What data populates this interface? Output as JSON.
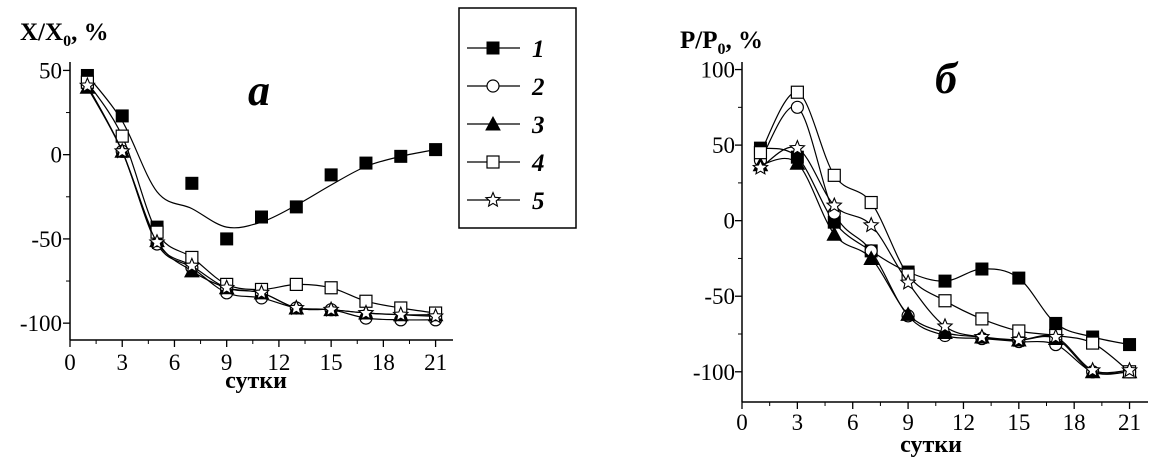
{
  "chart_data": [
    {
      "type": "line",
      "panel_label": "а",
      "ylabel": "X/X",
      "ylabel_sub": "0",
      "ylabel_suffix": ", %",
      "xlabel": "сутки",
      "xlim": [
        0,
        22
      ],
      "ylim": [
        -110,
        55
      ],
      "xticks": [
        0,
        3,
        6,
        9,
        12,
        15,
        18,
        21
      ],
      "yticks": [
        50,
        0,
        -50,
        -100
      ],
      "series": [
        {
          "name": "1",
          "marker": "square-filled",
          "x": [
            1,
            3,
            5,
            7,
            9,
            11,
            13,
            15,
            17,
            19,
            21
          ],
          "y": [
            47,
            23,
            -43,
            -17,
            -50,
            -37,
            -31,
            -12,
            -5,
            -1,
            3
          ],
          "smooth": [
            47,
            20,
            -22,
            -32,
            -43,
            -40,
            -30,
            -18,
            -7,
            -1,
            3
          ]
        },
        {
          "name": "2",
          "marker": "circle-open",
          "x": [
            1,
            3,
            5,
            7,
            9,
            11,
            13,
            15,
            17,
            19,
            21
          ],
          "y": [
            41,
            2,
            -53,
            -67,
            -82,
            -85,
            -91,
            -92,
            -97,
            -98,
            -98
          ]
        },
        {
          "name": "3",
          "marker": "triangle-filled",
          "x": [
            1,
            3,
            5,
            7,
            9,
            11,
            13,
            15,
            17,
            19,
            21
          ],
          "y": [
            40,
            2,
            -51,
            -69,
            -79,
            -82,
            -91,
            -92,
            -94,
            -95,
            -95
          ]
        },
        {
          "name": "4",
          "marker": "square-open",
          "x": [
            1,
            3,
            5,
            7,
            9,
            11,
            13,
            15,
            17,
            19,
            21
          ],
          "y": [
            43,
            11,
            -46,
            -61,
            -77,
            -80,
            -77,
            -79,
            -87,
            -91,
            -94
          ]
        },
        {
          "name": "5",
          "marker": "star-open",
          "x": [
            1,
            3,
            5,
            7,
            9,
            11,
            13,
            15,
            17,
            19,
            21
          ],
          "y": [
            41,
            2,
            -52,
            -66,
            -79,
            -82,
            -91,
            -92,
            -94,
            -95,
            -96
          ]
        }
      ]
    },
    {
      "type": "line",
      "panel_label": "б",
      "ylabel": "P/P",
      "ylabel_sub": "0",
      "ylabel_suffix": ", %",
      "xlabel": "сутки",
      "xlim": [
        0,
        22
      ],
      "ylim": [
        -120,
        105
      ],
      "xticks": [
        0,
        3,
        6,
        9,
        12,
        15,
        18,
        21
      ],
      "yticks": [
        100,
        50,
        0,
        -50,
        -100
      ],
      "series": [
        {
          "name": "1",
          "marker": "square-filled",
          "x": [
            1,
            3,
            5,
            7,
            9,
            11,
            13,
            15,
            17,
            19,
            21
          ],
          "y": [
            48,
            42,
            -1,
            -20,
            -34,
            -40,
            -32,
            -38,
            -68,
            -77,
            -82
          ]
        },
        {
          "name": "2",
          "marker": "circle-open",
          "x": [
            1,
            3,
            5,
            7,
            9,
            11,
            13,
            15,
            17,
            19,
            21
          ],
          "y": [
            40,
            75,
            5,
            -20,
            -63,
            -76,
            -78,
            -80,
            -82,
            -100,
            -100
          ]
        },
        {
          "name": "3",
          "marker": "triangle-filled",
          "x": [
            1,
            3,
            5,
            7,
            9,
            11,
            13,
            15,
            17,
            19,
            21
          ],
          "y": [
            37,
            38,
            -9,
            -25,
            -62,
            -74,
            -77,
            -79,
            -78,
            -100,
            -100
          ]
        },
        {
          "name": "4",
          "marker": "square-open",
          "x": [
            1,
            3,
            5,
            7,
            9,
            11,
            13,
            15,
            17,
            19,
            21
          ],
          "y": [
            45,
            85,
            30,
            12,
            -36,
            -53,
            -65,
            -73,
            -76,
            -81,
            -100
          ]
        },
        {
          "name": "5",
          "marker": "star-open",
          "x": [
            1,
            3,
            5,
            7,
            9,
            11,
            13,
            15,
            17,
            19,
            21
          ],
          "y": [
            35,
            48,
            10,
            -3,
            -41,
            -70,
            -77,
            -79,
            -77,
            -99,
            -99
          ]
        }
      ]
    }
  ],
  "legend": {
    "entries": [
      "1",
      "2",
      "3",
      "4",
      "5"
    ]
  }
}
